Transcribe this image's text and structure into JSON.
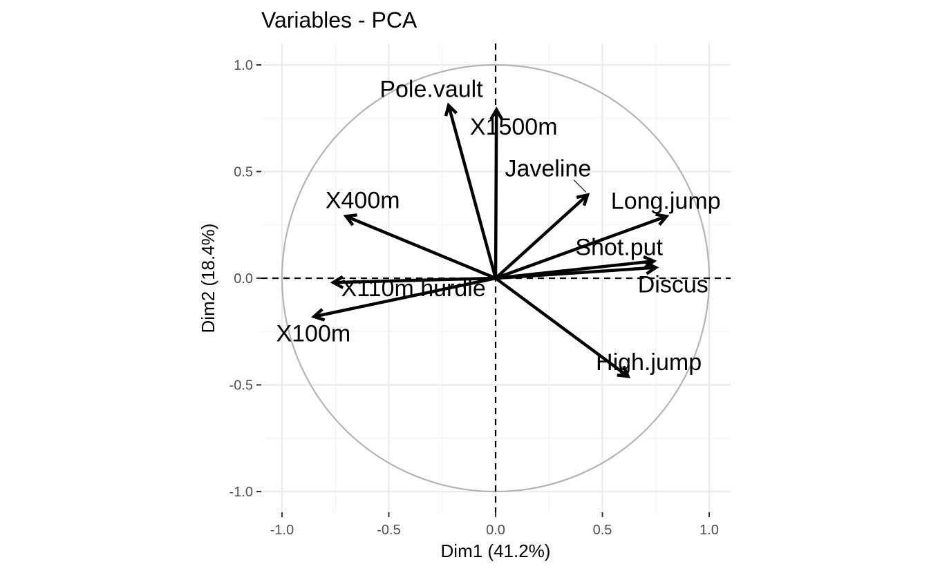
{
  "chart_data": {
    "type": "scatter",
    "title": "Variables - PCA",
    "xlabel": "Dim1 (41.2%)",
    "ylabel": "Dim2 (18.4%)",
    "xlim": [
      -1.0,
      1.0
    ],
    "ylim": [
      -1.0,
      1.0
    ],
    "xticks": [
      -1.0,
      -0.5,
      0.0,
      0.5,
      1.0
    ],
    "yticks": [
      -1.0,
      -0.5,
      0.0,
      0.5,
      1.0
    ],
    "xtick_labels": [
      "-1.0",
      "-0.5",
      "0.0",
      "0.5",
      "1.0"
    ],
    "ytick_labels": [
      "-1.0",
      "-0.5",
      "0.0",
      "0.5",
      "1.0"
    ],
    "grid": true,
    "correlation_circle": true,
    "variables": [
      {
        "name": "X100m",
        "x": -0.85,
        "y": -0.18
      },
      {
        "name": "Long.jump",
        "x": 0.8,
        "y": 0.29
      },
      {
        "name": "Shot.put",
        "x": 0.74,
        "y": 0.08
      },
      {
        "name": "High.jump",
        "x": 0.62,
        "y": -0.46
      },
      {
        "name": "X400m",
        "x": -0.7,
        "y": 0.29
      },
      {
        "name": "X110m.hurdle",
        "x": -0.76,
        "y": -0.02
      },
      {
        "name": "Discus",
        "x": 0.75,
        "y": 0.05
      },
      {
        "name": "Pole.vault",
        "x": -0.22,
        "y": 0.81
      },
      {
        "name": "Javeline",
        "x": 0.43,
        "y": 0.39
      },
      {
        "name": "X1500m",
        "x": 0.004,
        "y": 0.79
      }
    ]
  }
}
